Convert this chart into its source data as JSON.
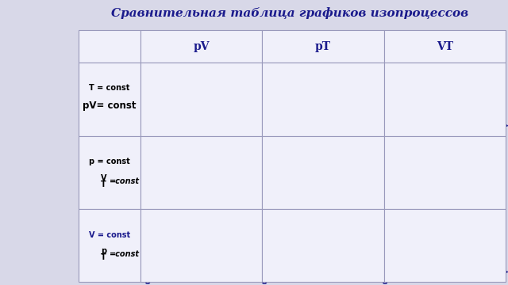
{
  "title": "Сравнительная таблица графиков изопроцессов",
  "title_fontsize": 11,
  "col_headers": [
    "pV",
    "pT",
    "VT"
  ],
  "row_headers": [
    [
      "T = const",
      "pV= const"
    ],
    [
      "p = const",
      "V/T = const"
    ],
    [
      "V = const",
      "p/T = const"
    ]
  ],
  "dark_blue": "#1a1a8c",
  "red": "#cc0000",
  "cell_bg": "#f0f0fa",
  "grid_color": "#9999bb",
  "fig_bg": "#d8d8e8",
  "title_color": "#1a1a8c"
}
